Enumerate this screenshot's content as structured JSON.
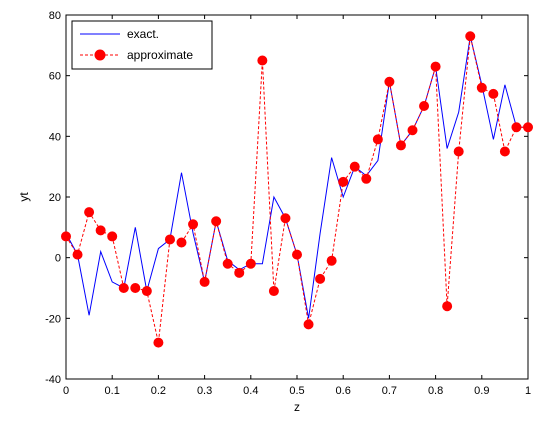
{
  "chart_data": {
    "type": "line",
    "title": "",
    "xlabel": "z",
    "ylabel": "yt",
    "xlim": [
      0,
      1
    ],
    "ylim": [
      -40,
      80
    ],
    "xticks": [
      "0",
      "0.1",
      "0.2",
      "0.3",
      "0.4",
      "0.5",
      "0.6",
      "0.7",
      "0.8",
      "0.9",
      "1"
    ],
    "yticks": [
      "-40",
      "-20",
      "0",
      "20",
      "40",
      "60",
      "80"
    ],
    "grid": false,
    "legend": {
      "placement": "top-left"
    },
    "series": [
      {
        "name": "exact.",
        "style": "solid",
        "color": "#0000ff",
        "marker": "none",
        "x": [
          0,
          0.025,
          0.05,
          0.075,
          0.1,
          0.125,
          0.15,
          0.175,
          0.2,
          0.225,
          0.25,
          0.275,
          0.3,
          0.325,
          0.35,
          0.375,
          0.4,
          0.425,
          0.45,
          0.475,
          0.5,
          0.525,
          0.55,
          0.575,
          0.6,
          0.625,
          0.65,
          0.675,
          0.7,
          0.725,
          0.75,
          0.775,
          0.8,
          0.825,
          0.85,
          0.875,
          0.9,
          0.925,
          0.95,
          0.975,
          1
        ],
        "y": [
          8,
          1,
          -19,
          2,
          -8,
          -10,
          10,
          -11,
          3,
          6,
          28,
          8,
          -8,
          12,
          -1,
          -4,
          -2,
          -2,
          20,
          13,
          1,
          -20,
          8,
          33,
          20,
          30,
          27,
          32,
          58,
          37,
          42,
          50,
          63,
          36,
          48,
          73,
          57,
          39,
          57,
          43,
          43
        ]
      },
      {
        "name": "approximate",
        "style": "dashed",
        "color": "#ff0000",
        "marker": "circle",
        "x": [
          0,
          0.025,
          0.05,
          0.075,
          0.1,
          0.125,
          0.15,
          0.175,
          0.2,
          0.225,
          0.25,
          0.275,
          0.3,
          0.325,
          0.35,
          0.375,
          0.4,
          0.425,
          0.45,
          0.475,
          0.5,
          0.525,
          0.55,
          0.575,
          0.6,
          0.625,
          0.65,
          0.675,
          0.7,
          0.725,
          0.75,
          0.775,
          0.8,
          0.825,
          0.85,
          0.875,
          0.9,
          0.925,
          0.95,
          0.975,
          1
        ],
        "y": [
          7,
          1,
          15,
          9,
          7,
          -10,
          -10,
          -11,
          -28,
          6,
          5,
          11,
          -8,
          12,
          -2,
          -5,
          -2,
          65,
          -11,
          13,
          1,
          -22,
          -7,
          -1,
          25,
          30,
          26,
          39,
          58,
          37,
          42,
          50,
          63,
          -16,
          35,
          73,
          56,
          54,
          35,
          43,
          43
        ]
      }
    ]
  }
}
